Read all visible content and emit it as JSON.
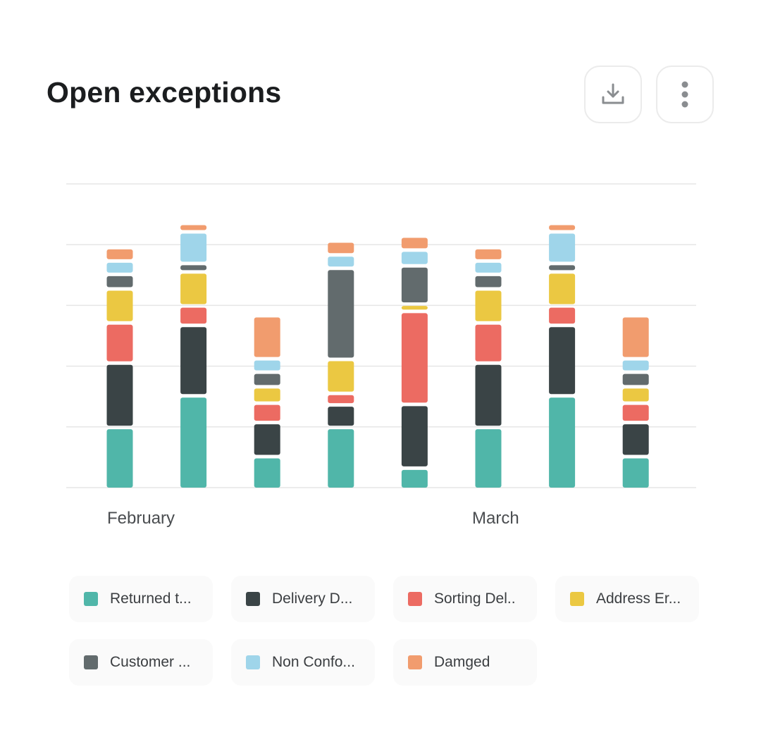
{
  "header": {
    "title": "Open exceptions",
    "download_icon": "download-icon",
    "more_icon": "more-vertical-icon"
  },
  "chart_data": {
    "type": "bar",
    "stacked": true,
    "categories": [
      "February",
      "",
      "",
      "",
      "",
      "March",
      "",
      ""
    ],
    "x_tick_labels": [
      "February",
      "March"
    ],
    "ylim": [
      0,
      5
    ],
    "grid": true,
    "series": [
      {
        "name": "Returned t...",
        "color": "#50b6a9",
        "values": [
          1.02,
          1.54,
          0.54,
          1.02,
          0.35,
          1.02,
          1.54,
          0.54
        ]
      },
      {
        "name": "Delivery D...",
        "color": "#3a4446",
        "values": [
          1.06,
          1.16,
          0.56,
          0.37,
          1.05,
          1.06,
          1.16,
          0.56
        ]
      },
      {
        "name": "Sorting Del..",
        "color": "#ec6b62",
        "values": [
          0.66,
          0.32,
          0.32,
          0.19,
          1.53,
          0.66,
          0.32,
          0.32
        ]
      },
      {
        "name": "Address Er...",
        "color": "#ebc842",
        "values": [
          0.56,
          0.56,
          0.27,
          0.56,
          0.12,
          0.56,
          0.56,
          0.27
        ]
      },
      {
        "name": "Customer ...",
        "color": "#626b6d",
        "values": [
          0.24,
          0.14,
          0.24,
          1.5,
          0.63,
          0.24,
          0.14,
          0.24
        ]
      },
      {
        "name": "Non Confo...",
        "color": "#9fd5ea",
        "values": [
          0.22,
          0.52,
          0.22,
          0.22,
          0.26,
          0.22,
          0.52,
          0.22
        ]
      },
      {
        "name": "Damged",
        "color": "#f19c6e",
        "values": [
          0.22,
          0.14,
          0.71,
          0.23,
          0.23,
          0.22,
          0.14,
          0.71
        ]
      }
    ]
  }
}
